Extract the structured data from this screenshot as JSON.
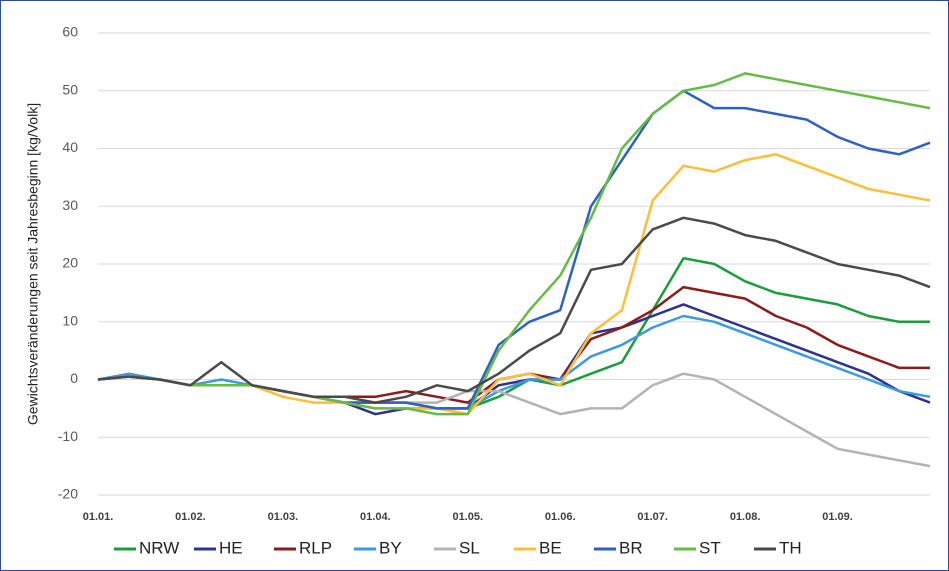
{
  "chart_data": {
    "type": "line",
    "y_label": "Gewichtsveränderungen seit Jahresbeginn [kg/Volk]",
    "categories": [
      "01.01.",
      null,
      null,
      "01.02.",
      null,
      null,
      "01.03.",
      null,
      null,
      "01.04.",
      null,
      null,
      "01.05.",
      null,
      null,
      "01.06.",
      null,
      null,
      "01.07.",
      null,
      null,
      "01.08.",
      null,
      null,
      "01.09.",
      null,
      null,
      null
    ],
    "ylim": [
      -20,
      60
    ],
    "yticks": [
      -20,
      -10,
      0,
      10,
      20,
      30,
      40,
      50,
      60
    ],
    "grid": true,
    "series": [
      {
        "name": "NRW",
        "color": "#1a9e3a",
        "values": [
          0,
          0.5,
          0,
          -1,
          -1,
          -1,
          -2,
          -3,
          -4,
          -4,
          -4,
          -5,
          -5,
          -3,
          0,
          -1,
          1,
          3,
          12,
          21,
          20,
          17,
          15,
          14,
          13,
          11,
          10,
          10
        ]
      },
      {
        "name": "HE",
        "color": "#2e3192",
        "values": [
          0,
          0.5,
          0,
          -1,
          -1,
          -1,
          -2,
          -3,
          -4,
          -6,
          -5,
          -5,
          -5,
          -1,
          0,
          0,
          8,
          9,
          11,
          13,
          11,
          9,
          7,
          5,
          3,
          1,
          -2,
          -4
        ]
      },
      {
        "name": "RLP",
        "color": "#8b1c1c",
        "values": [
          0,
          0.5,
          0,
          -1,
          -1,
          -1,
          -2,
          -3,
          -3,
          -3,
          -2,
          -3,
          -4,
          0,
          1,
          0,
          7,
          9,
          12,
          16,
          15,
          14,
          11,
          9,
          6,
          4,
          2,
          2
        ]
      },
      {
        "name": "BY",
        "color": "#3b9ae1",
        "values": [
          0,
          1,
          0,
          -1,
          0,
          -1,
          -2,
          -3,
          -4,
          -4,
          -4,
          -5,
          -5,
          -2,
          0,
          0,
          4,
          6,
          9,
          11,
          10,
          8,
          6,
          4,
          2,
          0,
          -2,
          -3
        ]
      },
      {
        "name": "SL",
        "color": "#b3b3b3",
        "values": [
          0,
          0.5,
          0,
          -1,
          -1,
          -1,
          -2,
          -3,
          -4,
          -4,
          -4,
          -4,
          -2,
          -2,
          -4,
          -6,
          -5,
          -5,
          -1,
          1,
          0,
          -3,
          -6,
          -9,
          -12,
          -13,
          -14,
          -15
        ]
      },
      {
        "name": "BE",
        "color": "#fbbf3a",
        "values": [
          0,
          0.5,
          0,
          -1,
          -1,
          -1,
          -3,
          -4,
          -4,
          -5,
          -5,
          -5,
          -6,
          0,
          1,
          -1,
          8,
          12,
          31,
          37,
          36,
          38,
          39,
          37,
          35,
          33,
          32,
          31
        ]
      },
      {
        "name": "BR",
        "color": "#2d62c4",
        "values": [
          0,
          0.5,
          0,
          -1,
          -1,
          -1,
          -2,
          -3,
          -4,
          -4,
          -4,
          -5,
          -5,
          6,
          10,
          12,
          30,
          38,
          46,
          50,
          47,
          47,
          46,
          45,
          42,
          40,
          39,
          41
        ]
      },
      {
        "name": "ST",
        "color": "#66bb44",
        "values": [
          0,
          0.5,
          0,
          -1,
          -1,
          -1,
          -2,
          -3,
          -4,
          -5,
          -5,
          -6,
          -6,
          5,
          12,
          18,
          28,
          40,
          46,
          50,
          51,
          53,
          52,
          51,
          50,
          49,
          48,
          47
        ]
      },
      {
        "name": "TH",
        "color": "#4a4a4a",
        "values": [
          0,
          0.5,
          0,
          -1,
          3,
          -1,
          -2,
          -3,
          -3,
          -4,
          -3,
          -1,
          -2,
          1,
          5,
          8,
          19,
          20,
          26,
          28,
          27,
          25,
          24,
          22,
          20,
          19,
          18,
          16
        ]
      }
    ]
  }
}
